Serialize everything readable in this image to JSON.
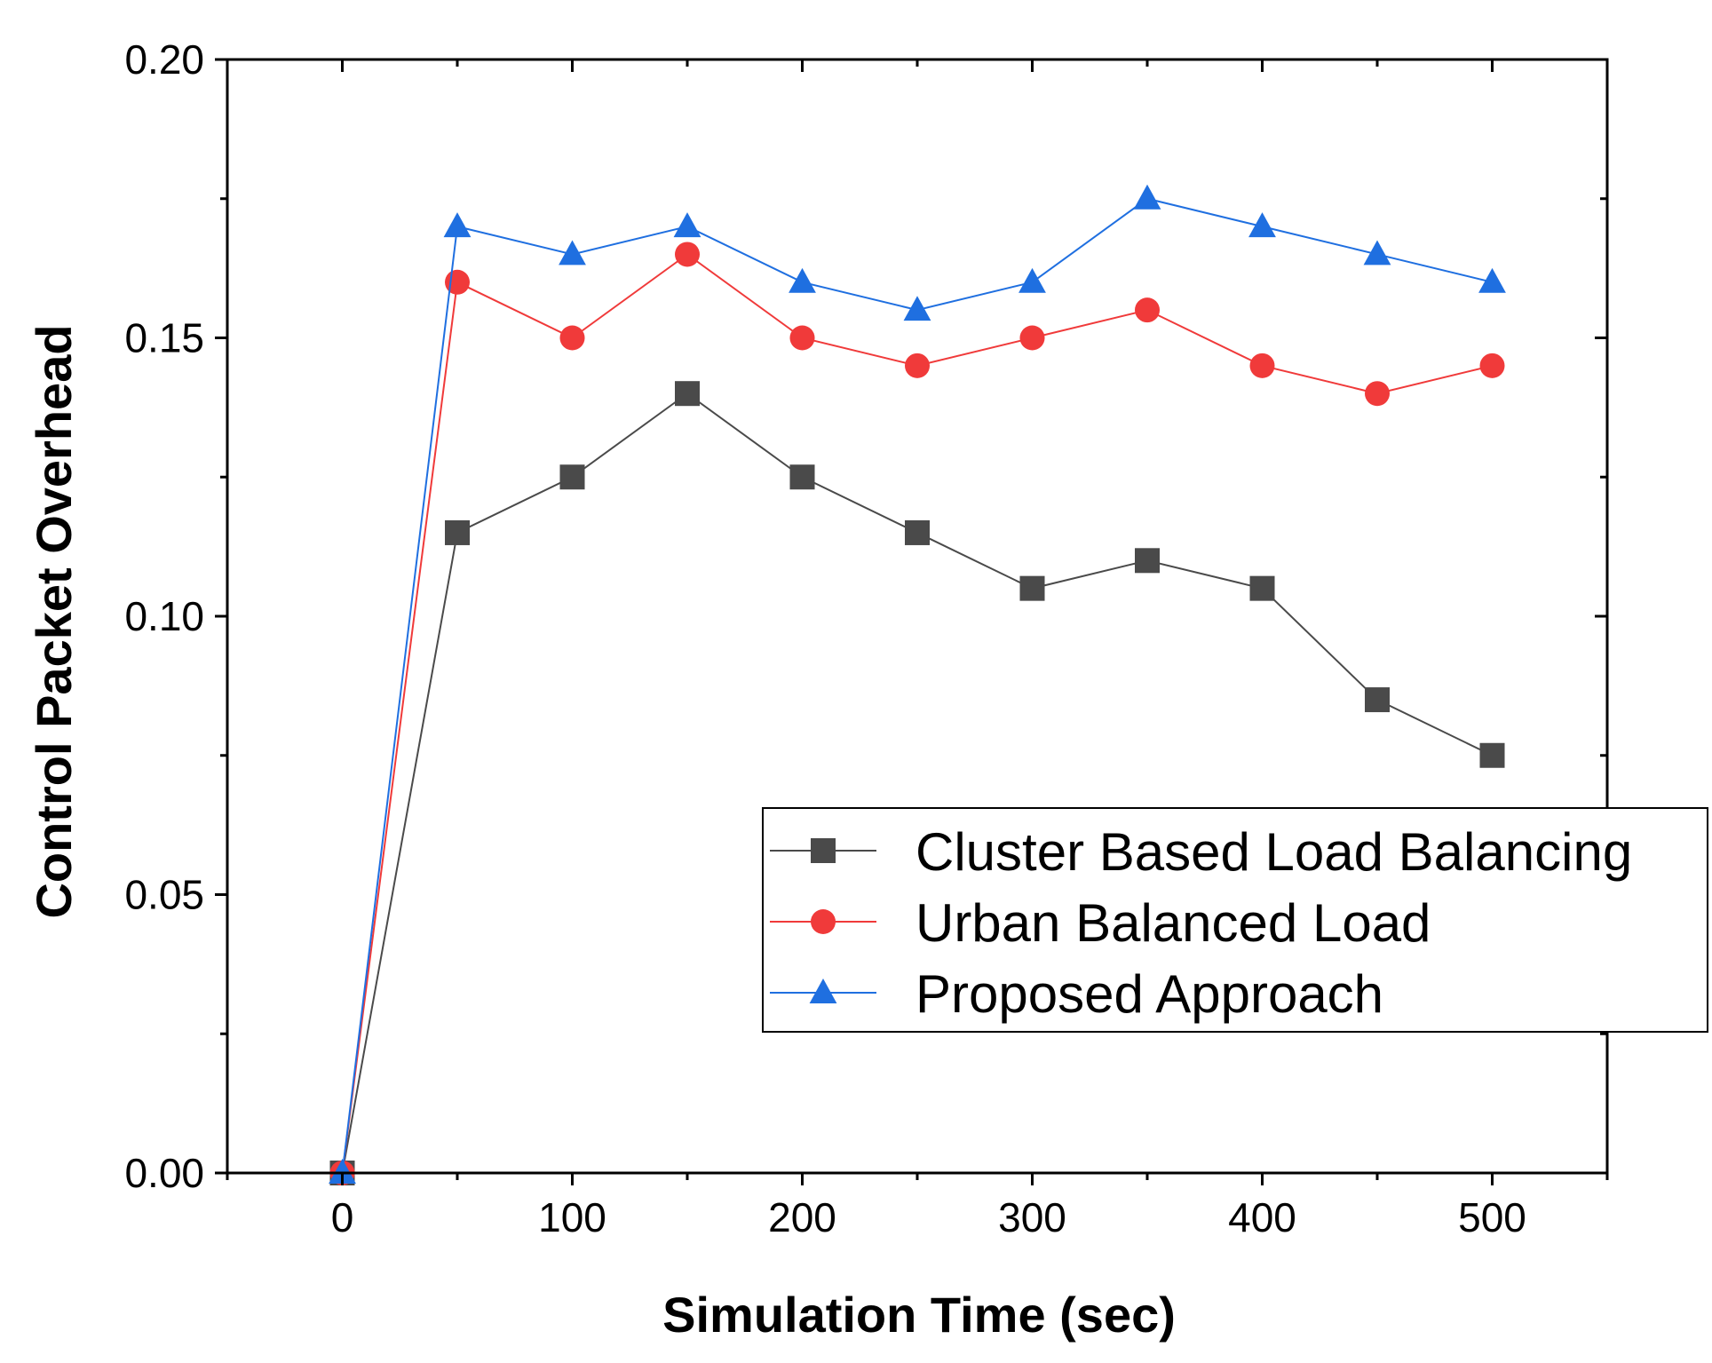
{
  "chart_data": {
    "type": "line",
    "xlabel": "Simulation Time (sec)",
    "ylabel": "Control Packet Overhead",
    "xlim": [
      -50,
      550
    ],
    "ylim": [
      0.0,
      0.2
    ],
    "x_ticks": [
      0,
      100,
      200,
      300,
      400,
      500
    ],
    "x_tick_labels": [
      "0",
      "100",
      "200",
      "300",
      "400",
      "500"
    ],
    "y_ticks": [
      0.0,
      0.05,
      0.1,
      0.15,
      0.2
    ],
    "y_tick_labels": [
      "0.00",
      "0.05",
      "0.10",
      "0.15",
      "0.20"
    ],
    "x": [
      0,
      50,
      100,
      150,
      200,
      250,
      300,
      350,
      400,
      450,
      500
    ],
    "grid": false,
    "legend_position": "lower-right",
    "series": [
      {
        "name": "Cluster Based Load Balancing",
        "marker": "square",
        "color": "#4a4a4a",
        "values": [
          0.0,
          0.115,
          0.125,
          0.14,
          0.125,
          0.115,
          0.105,
          0.11,
          0.105,
          0.085,
          0.075
        ]
      },
      {
        "name": "Urban Balanced Load",
        "marker": "circle",
        "color": "#f03a3a",
        "values": [
          0.0,
          0.16,
          0.15,
          0.165,
          0.15,
          0.145,
          0.15,
          0.155,
          0.145,
          0.14,
          0.145
        ]
      },
      {
        "name": "Proposed Approach",
        "marker": "triangle",
        "color": "#1f6fe0",
        "values": [
          0.0,
          0.17,
          0.165,
          0.17,
          0.16,
          0.155,
          0.16,
          0.175,
          0.17,
          0.165,
          0.16
        ]
      }
    ]
  }
}
